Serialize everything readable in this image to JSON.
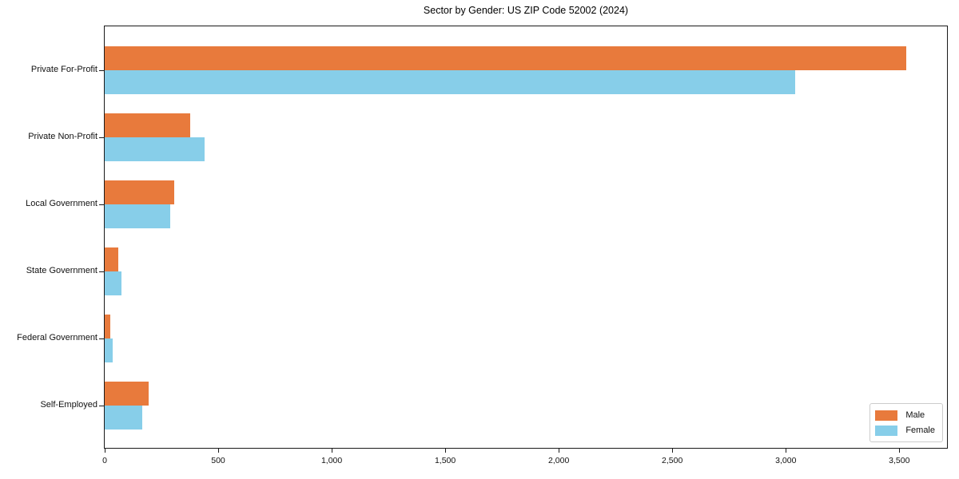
{
  "title": "Sector by Gender: US ZIP Code 52002 (2024)",
  "chart_data": {
    "type": "bar",
    "orientation": "horizontal",
    "title": "Sector by Gender: US ZIP Code 52002 (2024)",
    "xlabel": "",
    "ylabel": "",
    "categories": [
      "Private For-Profit",
      "Private Non-Profit",
      "Local Government",
      "State Government",
      "Federal Government",
      "Self-Employed"
    ],
    "series": [
      {
        "name": "Male",
        "color": "#e87a3c",
        "values": [
          3530,
          375,
          305,
          60,
          25,
          195
        ]
      },
      {
        "name": "Female",
        "color": "#87cee9",
        "values": [
          3040,
          440,
          290,
          75,
          35,
          165
        ]
      }
    ],
    "xlim": [
      0,
      3710
    ],
    "xticks": [
      0,
      500,
      1000,
      1500,
      2000,
      2500,
      3000,
      3500
    ],
    "xtick_labels": [
      "0",
      "500",
      "1,000",
      "1,500",
      "2,000",
      "2,500",
      "3,000",
      "3,500"
    ],
    "grid": false,
    "legend_position": "lower right"
  }
}
